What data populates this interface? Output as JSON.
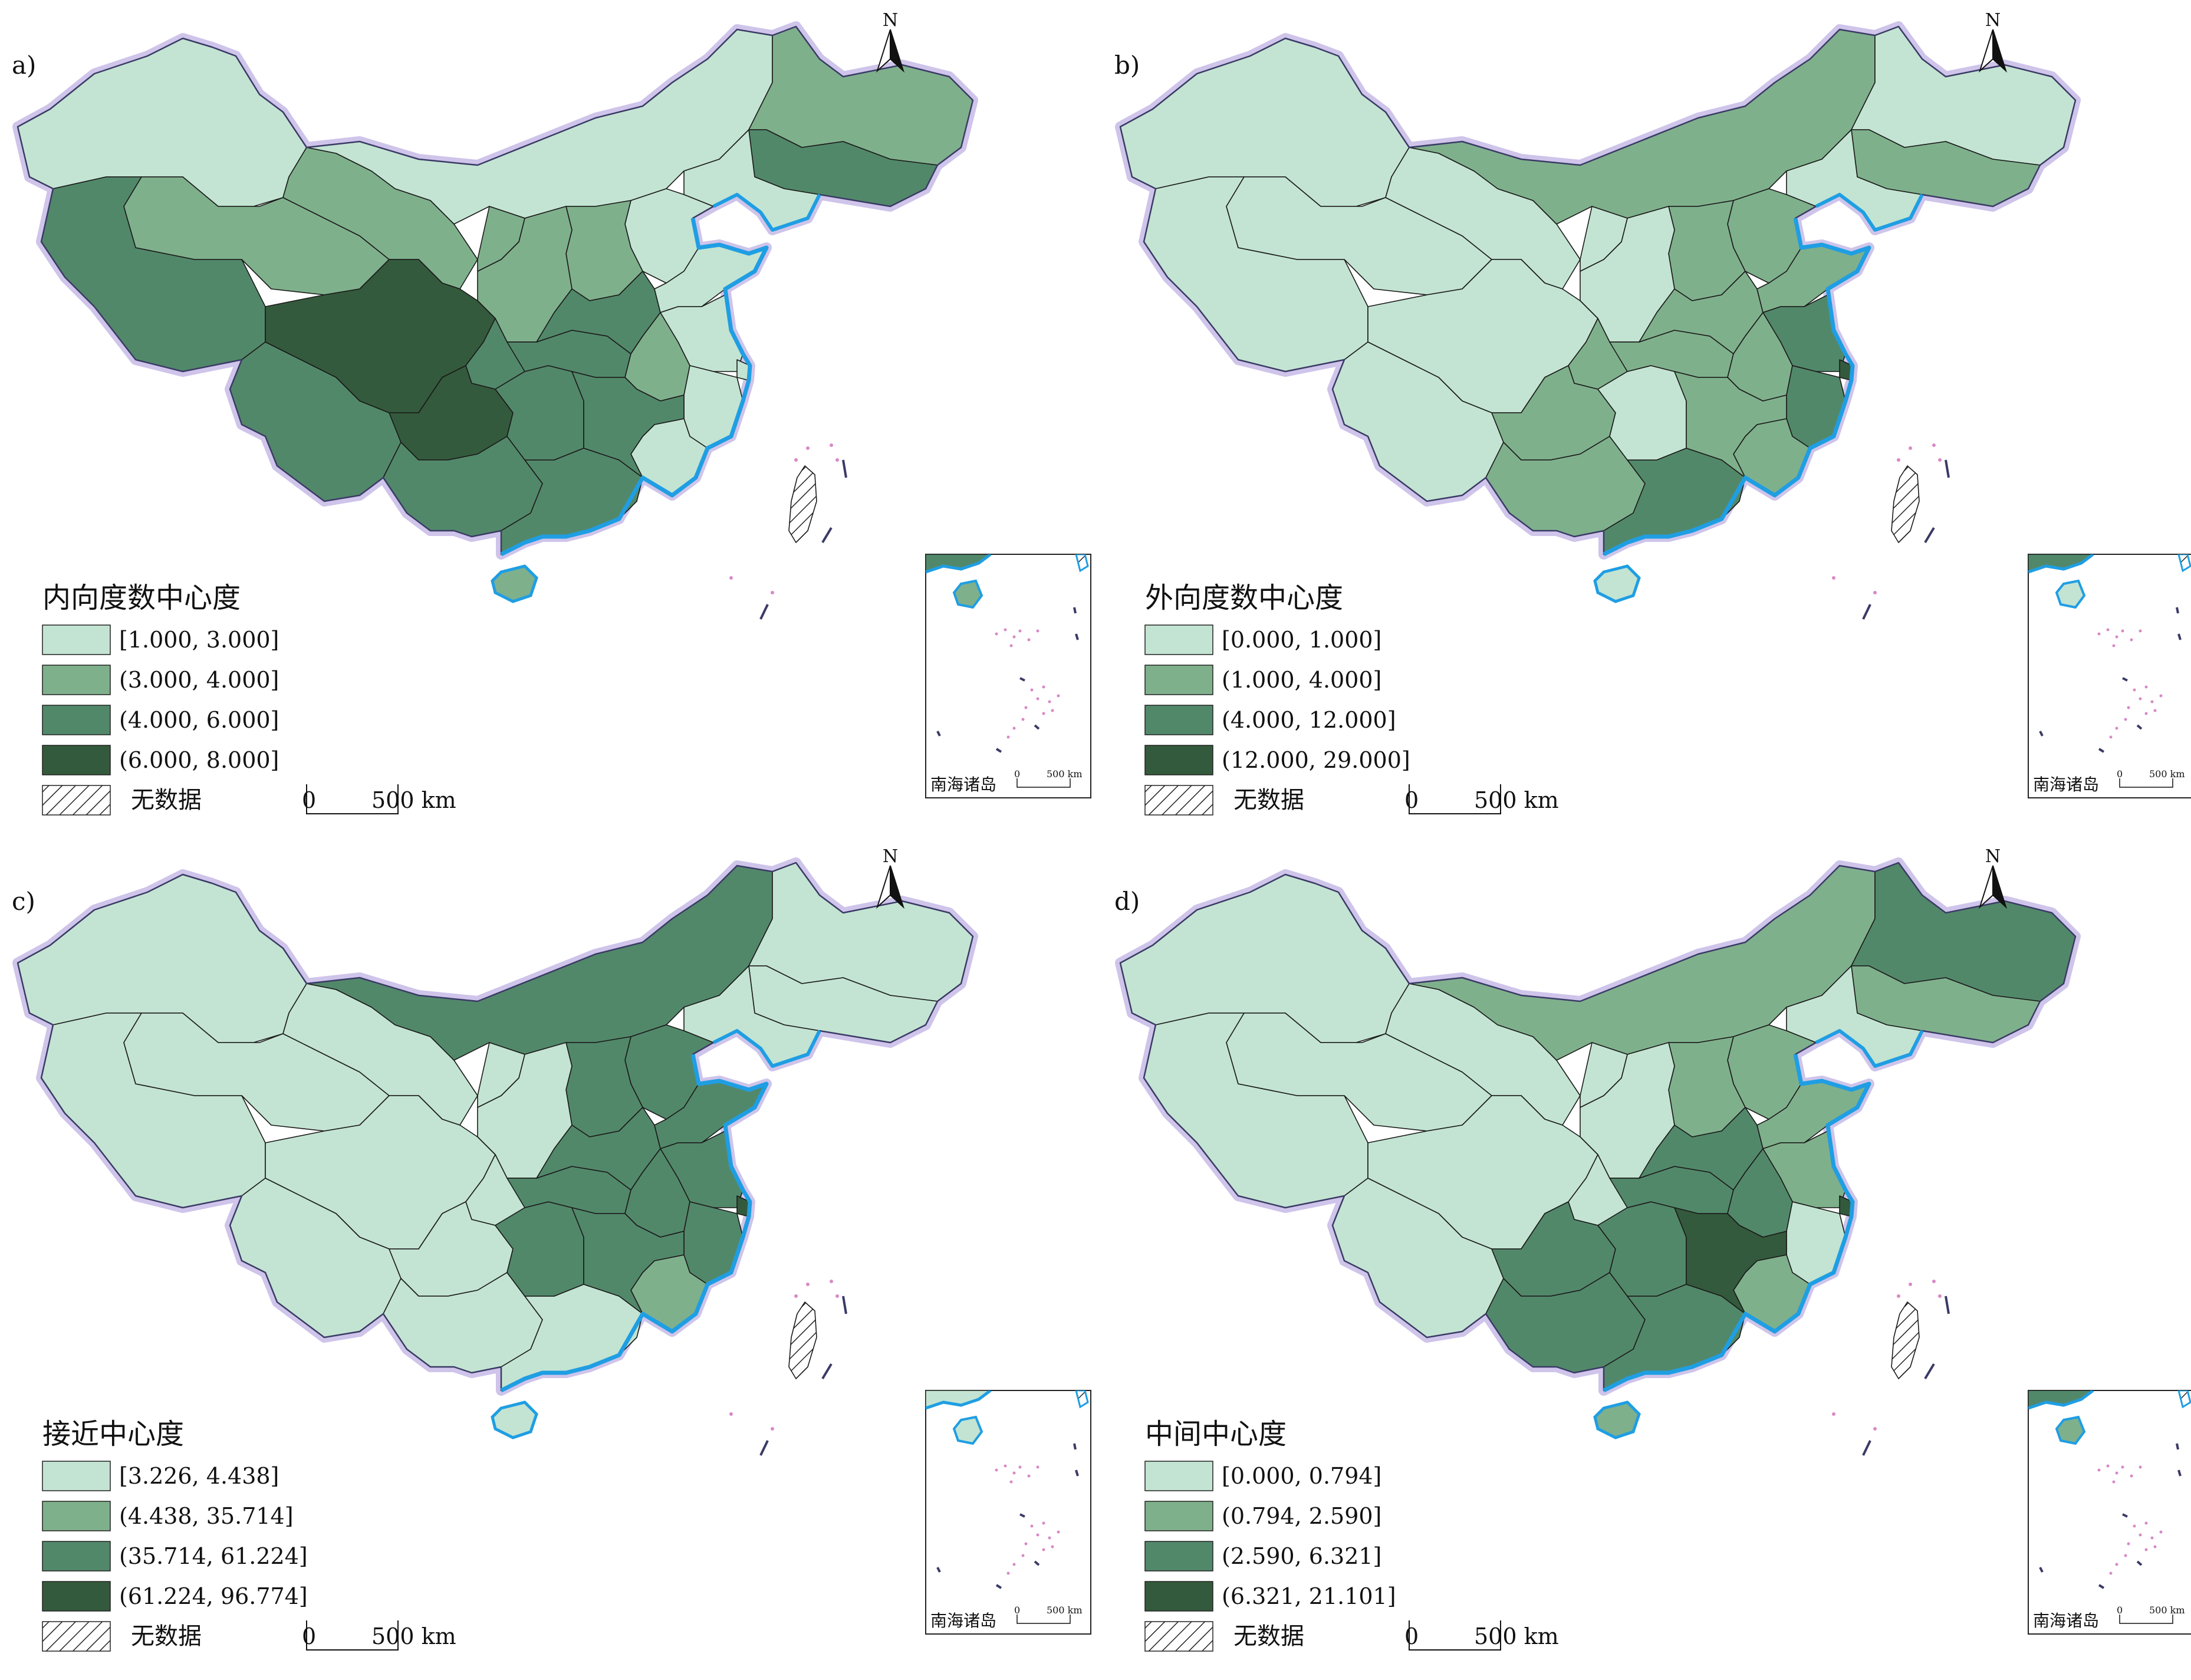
{
  "colors": {
    "c1": "#c3e4d2",
    "c2": "#7fb08c",
    "c3": "#52886a",
    "c4": "#335a3c",
    "sea": "#1f9ee3",
    "border": "#1a1a1a",
    "halo": "#cfc4ea",
    "island": "#d889c7"
  },
  "panels": [
    {
      "id": "a",
      "label": "a)",
      "legend_title": "内向度数中心度",
      "classes": [
        "[1.000, 3.000]",
        "(3.000, 4.000]",
        "(4.000, 6.000]",
        "(6.000, 8.000]"
      ],
      "no_data": "无数据",
      "scale_zero": "0",
      "scale_label": "500 km",
      "north": "N",
      "inset_label": "南海诸岛",
      "inset_scale_zero": "0",
      "inset_scale_label": "500 km",
      "region_class": {
        "xinjiang": 1,
        "tibet": 3,
        "qinghai": 2,
        "gansu": 2,
        "neimenggu": 1,
        "heilongjiang": 2,
        "jilin": 3,
        "liaoning": 1,
        "beijing": 3,
        "tianjin": 1,
        "hebei": 1,
        "shanxi": 2,
        "shaanxi": 2,
        "ningxia": 2,
        "sichuan": 4,
        "chongqing": 3,
        "yunnan": 3,
        "guizhou": 4,
        "guangxi": 3,
        "guangdong": 3,
        "hainan": 2,
        "hunan": 3,
        "hubei": 3,
        "henan": 3,
        "shandong": 1,
        "jiangsu": 1,
        "anhui": 2,
        "zhejiang": 1,
        "shanghai": 1,
        "fujian": 1,
        "jiangxi": 3,
        "taiwan": 0
      }
    },
    {
      "id": "b",
      "label": "b)",
      "legend_title": "外向度数中心度",
      "classes": [
        "[0.000, 1.000]",
        "(1.000, 4.000]",
        "(4.000, 12.000]",
        "(12.000, 29.000]"
      ],
      "no_data": "无数据",
      "scale_zero": "0",
      "scale_label": "500 km",
      "north": "N",
      "inset_label": "南海诸岛",
      "inset_scale_zero": "0",
      "inset_scale_label": "500 km",
      "region_class": {
        "xinjiang": 1,
        "tibet": 1,
        "qinghai": 1,
        "gansu": 1,
        "neimenggu": 2,
        "heilongjiang": 1,
        "jilin": 2,
        "liaoning": 1,
        "beijing": 4,
        "tianjin": 2,
        "hebei": 2,
        "shanxi": 2,
        "shaanxi": 1,
        "ningxia": 1,
        "sichuan": 1,
        "chongqing": 2,
        "yunnan": 1,
        "guizhou": 2,
        "guangxi": 2,
        "guangdong": 3,
        "hainan": 1,
        "hunan": 1,
        "hubei": 2,
        "henan": 2,
        "shandong": 2,
        "jiangsu": 3,
        "anhui": 2,
        "zhejiang": 3,
        "shanghai": 4,
        "fujian": 2,
        "jiangxi": 2,
        "taiwan": 0
      }
    },
    {
      "id": "c",
      "label": "c)",
      "legend_title": "接近中心度",
      "classes": [
        "[3.226, 4.438]",
        "(4.438, 35.714]",
        "(35.714, 61.224]",
        "(61.224, 96.774]"
      ],
      "no_data": "无数据",
      "scale_zero": "0",
      "scale_label": "500 km",
      "north": "N",
      "inset_label": "南海诸岛",
      "inset_scale_zero": "0",
      "inset_scale_label": "500 km",
      "region_class": {
        "xinjiang": 1,
        "tibet": 1,
        "qinghai": 1,
        "gansu": 1,
        "neimenggu": 3,
        "heilongjiang": 1,
        "jilin": 1,
        "liaoning": 1,
        "beijing": 4,
        "tianjin": 3,
        "hebei": 3,
        "shanxi": 3,
        "shaanxi": 1,
        "ningxia": 1,
        "sichuan": 1,
        "chongqing": 1,
        "yunnan": 1,
        "guizhou": 1,
        "guangxi": 1,
        "guangdong": 1,
        "hainan": 1,
        "hunan": 3,
        "hubei": 3,
        "henan": 3,
        "shandong": 3,
        "jiangsu": 3,
        "anhui": 3,
        "zhejiang": 3,
        "shanghai": 4,
        "fujian": 2,
        "jiangxi": 3,
        "taiwan": 0
      }
    },
    {
      "id": "d",
      "label": "d)",
      "legend_title": "中间中心度",
      "classes": [
        "[0.000, 0.794]",
        "(0.794, 2.590]",
        "(2.590, 6.321]",
        "(6.321, 21.101]"
      ],
      "no_data": "无数据",
      "scale_zero": "0",
      "scale_label": "500 km",
      "north": "N",
      "inset_label": "南海诸岛",
      "inset_scale_zero": "0",
      "inset_scale_label": "500 km",
      "region_class": {
        "xinjiang": 1,
        "tibet": 1,
        "qinghai": 1,
        "gansu": 1,
        "neimenggu": 2,
        "heilongjiang": 3,
        "jilin": 2,
        "liaoning": 1,
        "beijing": 4,
        "tianjin": 2,
        "hebei": 2,
        "shanxi": 2,
        "shaanxi": 1,
        "ningxia": 1,
        "sichuan": 1,
        "chongqing": 1,
        "yunnan": 1,
        "guizhou": 3,
        "guangxi": 3,
        "guangdong": 3,
        "hainan": 2,
        "hunan": 3,
        "hubei": 3,
        "henan": 3,
        "shandong": 2,
        "jiangsu": 2,
        "anhui": 3,
        "zhejiang": 1,
        "shanghai": 4,
        "fujian": 2,
        "jiangxi": 4,
        "taiwan": 0
      }
    }
  ]
}
